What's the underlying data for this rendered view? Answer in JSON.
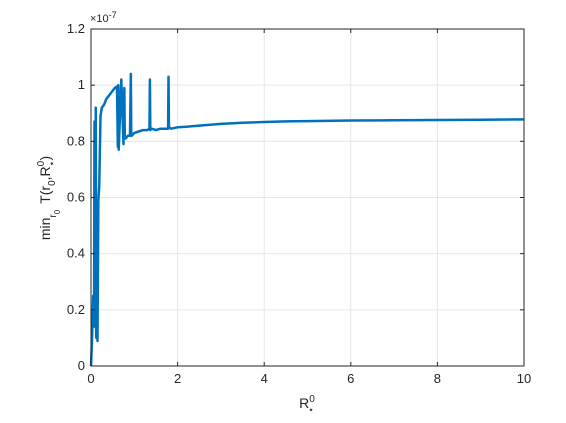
{
  "chart_data": {
    "type": "line",
    "title": "",
    "xlabel": {
      "base": "R",
      "sup": "0",
      "sub": "⋆"
    },
    "ylabel": {
      "prefix": "min",
      "prefix_sub": "r",
      "prefix_subsub": "0",
      "func": "T(r",
      "arg1_sub": "0",
      "sep": ",R",
      "arg2_sup": "0",
      "arg2_sub": "⋆",
      "close": ")"
    },
    "xlim": [
      0,
      10
    ],
    "ylim": [
      0,
      1.2e-07
    ],
    "y_exponent_label": {
      "base": "×10",
      "exp": "-7"
    },
    "xticks": [
      0,
      2,
      4,
      6,
      8,
      10
    ],
    "xtick_labels": [
      "0",
      "2",
      "4",
      "6",
      "8",
      "10"
    ],
    "yticks": [
      0,
      2e-08,
      4e-08,
      6e-08,
      8e-08,
      1e-07,
      1.2e-07
    ],
    "ytick_labels": [
      "0",
      "0.2",
      "0.4",
      "0.6",
      "0.8",
      "1",
      "1.2"
    ],
    "grid": true,
    "series": [
      {
        "color": "#0072BD",
        "x": [
          0,
          0.03,
          0.05,
          0.07,
          0.08,
          0.1,
          0.11,
          0.12,
          0.13,
          0.14,
          0.15,
          0.17,
          0.19,
          0.22,
          0.25,
          0.3,
          0.35,
          0.4,
          0.45,
          0.5,
          0.55,
          0.6,
          0.62,
          0.63,
          0.64,
          0.7,
          0.75,
          0.77,
          0.78,
          0.8,
          0.85,
          0.9,
          0.92,
          0.93,
          0.94,
          1.0,
          1.1,
          1.2,
          1.3,
          1.35,
          1.36,
          1.37,
          1.4,
          1.5,
          1.6,
          1.7,
          1.78,
          1.79,
          1.8,
          1.85,
          2.0,
          2.2,
          2.5,
          3.0,
          3.5,
          4.0,
          4.5,
          5.0,
          6.0,
          7.0,
          8.0,
          9.0,
          10.0
        ],
        "y": [
          0,
          1.2e-08,
          2.5e-08,
          1.4e-08,
          8.7e-08,
          1.5e-08,
          9.2e-08,
          1e-08,
          4.5e-08,
          5.3e-08,
          8.9e-09,
          5.9e-08,
          6.4e-08,
          8.9e-08,
          9.2e-08,
          9.3e-08,
          9.5e-08,
          9.6e-08,
          9.7e-08,
          9.8e-08,
          9.9e-08,
          9.95e-08,
          7.8e-08,
          1e-07,
          7.7e-08,
          1.02e-07,
          7.9e-08,
          9.9e-08,
          8.1e-08,
          8.1e-08,
          8.2e-08,
          8.2e-08,
          1.04e-07,
          8.2e-08,
          8.2e-08,
          8.3e-08,
          8.35e-08,
          8.4e-08,
          8.4e-08,
          8.45e-08,
          1.02e-07,
          8.4e-08,
          8.45e-08,
          8.4e-08,
          8.45e-08,
          8.45e-08,
          8.45e-08,
          1.03e-07,
          8.5e-08,
          8.45e-08,
          8.5e-08,
          8.52e-08,
          8.56e-08,
          8.62e-08,
          8.66e-08,
          8.69e-08,
          8.71e-08,
          8.72e-08,
          8.74e-08,
          8.75e-08,
          8.76e-08,
          8.77e-08,
          8.78e-08
        ]
      }
    ]
  }
}
